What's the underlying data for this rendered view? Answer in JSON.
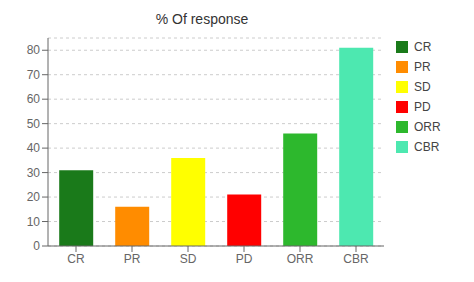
{
  "chart_data": {
    "type": "bar",
    "title": "% Of response",
    "categories": [
      "CR",
      "PR",
      "SD",
      "PD",
      "ORR",
      "CBR"
    ],
    "values": [
      31,
      16,
      36,
      21,
      46,
      81
    ],
    "colors": [
      "#1a7a1a",
      "#ff8c00",
      "#ffff00",
      "#ff0000",
      "#2db82d",
      "#4de8b0"
    ],
    "ylim": [
      0,
      85
    ],
    "yticks": [
      0,
      10,
      20,
      30,
      40,
      50,
      60,
      70,
      80
    ],
    "grid": true,
    "legend": "right"
  }
}
